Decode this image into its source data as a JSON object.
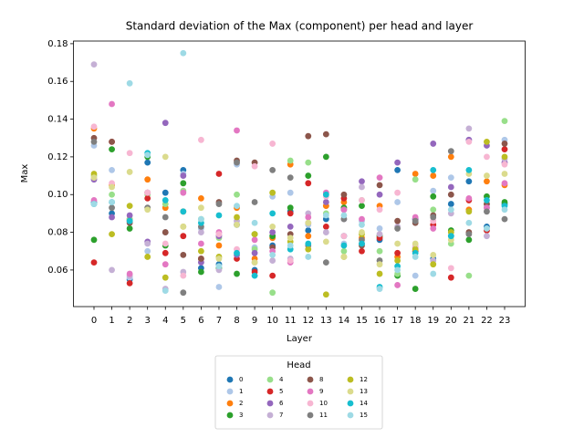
{
  "chart_data": {
    "type": "scatter",
    "title": "Standard deviation of the Max (component) per head and layer",
    "x_label": "Layer",
    "y_label": "Max",
    "x": [
      0,
      1,
      2,
      3,
      4,
      5,
      6,
      7,
      8,
      9,
      10,
      11,
      12,
      13,
      14,
      15,
      16,
      17,
      18,
      19,
      20,
      21,
      22,
      23
    ],
    "xlim": [
      -1.15,
      24.15
    ],
    "xticks": [
      0,
      1,
      2,
      3,
      4,
      5,
      6,
      7,
      8,
      9,
      10,
      11,
      12,
      13,
      14,
      15,
      16,
      17,
      18,
      19,
      20,
      21,
      22,
      23
    ],
    "ylim": [
      0.0406,
      0.1814
    ],
    "yticks": [
      0.06,
      0.08,
      {
        "value": 0.1,
        "label": "0.10"
      },
      0.12,
      0.14,
      0.16,
      0.18
    ],
    "legend_title": "Head",
    "legend_loc": "below",
    "series": [
      {
        "name": "0",
        "color": "#1f77b4",
        "values": [
          0.096,
          0.09,
          0.055,
          0.117,
          0.101,
          0.113,
          0.061,
          0.063,
          0.084,
          0.06,
          0.073,
          0.091,
          0.081,
          0.087,
          0.078,
          0.074,
          0.076,
          0.113,
          0.087,
          0.066,
          0.095,
          0.107,
          0.083,
          0.095
        ]
      },
      {
        "name": "1",
        "color": "#aec7e8",
        "values": [
          0.126,
          0.113,
          0.056,
          0.07,
          0.08,
          0.111,
          0.082,
          0.051,
          0.116,
          0.072,
          0.099,
          0.101,
          0.084,
          0.094,
          0.074,
          0.086,
          0.082,
          0.096,
          0.057,
          0.102,
          0.109,
          0.129,
          0.093,
          0.129
        ]
      },
      {
        "name": "2",
        "color": "#ff7f0e",
        "values": [
          0.135,
          0.105,
          0.087,
          0.108,
          0.093,
          0.091,
          0.098,
          0.073,
          0.093,
          0.066,
          0.077,
          0.116,
          0.078,
          0.094,
          0.096,
          0.077,
          0.094,
          0.067,
          0.111,
          0.11,
          0.12,
          0.092,
          0.107,
          0.105
        ]
      },
      {
        "name": "3",
        "color": "#2ca02c",
        "values": [
          0.076,
          0.124,
          0.082,
          0.12,
          0.073,
          0.106,
          0.059,
          0.061,
          0.058,
          0.079,
          0.078,
          0.093,
          0.11,
          0.12,
          0.093,
          0.094,
          0.078,
          0.057,
          0.05,
          0.099,
          0.081,
          0.076,
          0.099,
          0.096
        ]
      },
      {
        "name": "4",
        "color": "#98df8a",
        "values": [
          0.11,
          0.1,
          0.087,
          0.1,
          0.095,
          0.102,
          0.087,
          0.077,
          0.1,
          0.071,
          0.048,
          0.118,
          0.117,
          0.09,
          0.07,
          0.097,
          0.07,
          0.058,
          0.108,
          0.092,
          0.074,
          0.057,
          0.095,
          0.139
        ]
      },
      {
        "name": "5",
        "color": "#d62728",
        "values": [
          0.064,
          0.128,
          0.053,
          0.098,
          0.069,
          0.078,
          0.066,
          0.111,
          0.066,
          0.059,
          0.057,
          0.09,
          0.106,
          0.083,
          0.098,
          0.07,
          0.077,
          0.069,
          0.07,
          0.084,
          0.056,
          0.097,
          0.081,
          0.124
        ]
      },
      {
        "name": "6",
        "color": "#9467bd",
        "values": [
          0.108,
          0.088,
          0.089,
          0.075,
          0.138,
          0.11,
          0.064,
          0.078,
          0.068,
          0.069,
          0.08,
          0.083,
          0.085,
          0.096,
          0.092,
          0.107,
          0.1,
          0.117,
          0.087,
          0.127,
          0.104,
          0.129,
          0.126,
          0.117
        ]
      },
      {
        "name": "7",
        "color": "#c5b0d5",
        "values": [
          0.169,
          0.06,
          0.057,
          0.074,
          0.05,
          0.059,
          0.08,
          0.06,
          0.086,
          0.064,
          0.065,
          0.066,
          0.09,
          0.08,
          0.087,
          0.104,
          0.079,
          0.083,
          0.072,
          0.065,
          0.09,
          0.135,
          0.078,
          0.119
        ]
      },
      {
        "name": "8",
        "color": "#8c564b",
        "values": [
          0.13,
          0.128,
          0.085,
          0.101,
          0.08,
          0.068,
          0.066,
          0.096,
          0.118,
          0.117,
          0.072,
          0.079,
          0.131,
          0.132,
          0.1,
          0.073,
          0.105,
          0.086,
          0.085,
          0.089,
          0.1,
          0.08,
          0.095,
          0.127
        ]
      },
      {
        "name": "9",
        "color": "#e377c2",
        "values": [
          0.097,
          0.148,
          0.058,
          0.101,
          0.063,
          0.101,
          0.074,
          0.08,
          0.134,
          0.076,
          0.07,
          0.064,
          0.088,
          0.101,
          0.092,
          0.087,
          0.109,
          0.052,
          0.088,
          0.082,
          0.078,
          0.098,
          0.093,
          0.106
        ]
      },
      {
        "name": "10",
        "color": "#f7b6d2",
        "values": [
          0.136,
          0.106,
          0.122,
          0.101,
          0.074,
          0.057,
          0.129,
          0.079,
          0.071,
          0.115,
          0.127,
          0.065,
          0.085,
          0.099,
          0.078,
          0.097,
          0.092,
          0.101,
          0.073,
          0.086,
          0.061,
          0.128,
          0.12,
          0.116
        ]
      },
      {
        "name": "11",
        "color": "#7f7f7f",
        "values": [
          0.128,
          0.093,
          0.086,
          0.093,
          0.088,
          0.048,
          0.083,
          0.095,
          0.117,
          0.096,
          0.113,
          0.109,
          0.073,
          0.064,
          0.087,
          0.076,
          0.065,
          0.082,
          0.086,
          0.088,
          0.123,
          0.079,
          0.091,
          0.087
        ]
      },
      {
        "name": "12",
        "color": "#bcbd22",
        "values": [
          0.111,
          0.079,
          0.094,
          0.067,
          0.056,
          0.083,
          0.07,
          0.067,
          0.088,
          0.079,
          0.101,
          0.075,
          0.071,
          0.047,
          0.067,
          0.079,
          0.058,
          0.065,
          0.071,
          0.063,
          0.08,
          0.091,
          0.128,
          0.12
        ]
      },
      {
        "name": "13",
        "color": "#dbdb8d",
        "values": [
          0.109,
          0.104,
          0.112,
          0.092,
          0.12,
          0.083,
          0.093,
          0.066,
          0.084,
          0.064,
          0.083,
          0.077,
          0.085,
          0.075,
          0.067,
          0.08,
          0.063,
          0.074,
          0.074,
          0.068,
          0.076,
          0.111,
          0.11,
          0.111
        ]
      },
      {
        "name": "14",
        "color": "#17becf",
        "values": [
          0.095,
          0.096,
          0.086,
          0.122,
          0.097,
          0.091,
          0.085,
          0.089,
          0.069,
          0.057,
          0.09,
          0.071,
          0.074,
          0.1,
          0.073,
          0.074,
          0.051,
          0.062,
          0.069,
          0.113,
          0.078,
          0.113,
          0.097,
          0.094
        ]
      },
      {
        "name": "15",
        "color": "#9edae5",
        "values": [
          0.095,
          0.096,
          0.159,
          0.121,
          0.049,
          0.175,
          0.087,
          0.062,
          0.094,
          0.085,
          0.068,
          0.073,
          0.067,
          0.089,
          0.089,
          0.084,
          0.05,
          0.06,
          0.067,
          0.058,
          0.092,
          0.085,
          0.082,
          0.092
        ]
      }
    ]
  }
}
